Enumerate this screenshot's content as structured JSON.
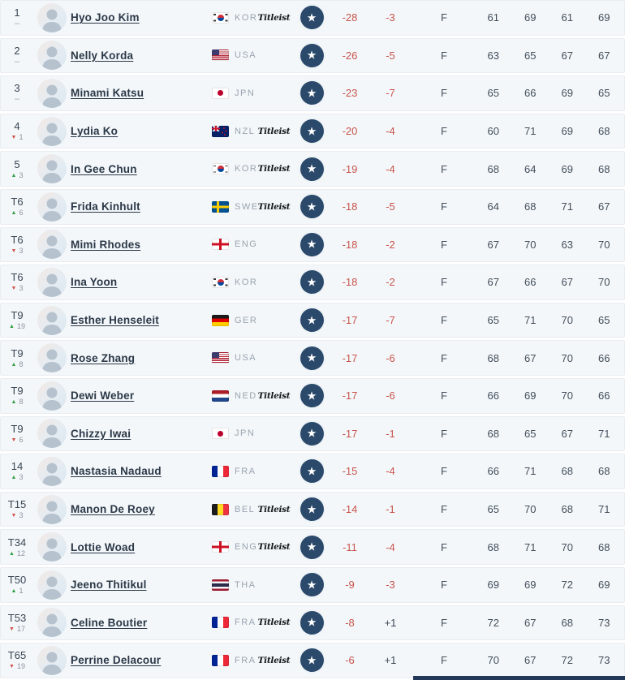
{
  "colors": {
    "row_background": "#f3f7fa",
    "star_badge_navy": "#2b4a6b",
    "score_red": "#c9544b",
    "movement_up_green": "#2f9e44",
    "movement_down_red": "#d0544c"
  },
  "icons": {
    "star": "star-icon",
    "movement_up": "triangle-up-icon",
    "movement_down": "triangle-down-icon",
    "no_movement": "dash"
  },
  "rows": [
    {
      "position": "1",
      "movement": {
        "dir": "none",
        "value": ""
      },
      "player": "Hyo Joo Kim",
      "country": "KOR",
      "titleist": true,
      "total": "-28",
      "today": "-3",
      "thru": "F",
      "r1": "61",
      "r2": "69",
      "r3": "61",
      "r4": "69"
    },
    {
      "position": "2",
      "movement": {
        "dir": "none",
        "value": ""
      },
      "player": "Nelly Korda",
      "country": "USA",
      "titleist": false,
      "total": "-26",
      "today": "-5",
      "thru": "F",
      "r1": "63",
      "r2": "65",
      "r3": "67",
      "r4": "67"
    },
    {
      "position": "3",
      "movement": {
        "dir": "none",
        "value": ""
      },
      "player": "Minami Katsu",
      "country": "JPN",
      "titleist": false,
      "total": "-23",
      "today": "-7",
      "thru": "F",
      "r1": "65",
      "r2": "66",
      "r3": "69",
      "r4": "65"
    },
    {
      "position": "4",
      "movement": {
        "dir": "down",
        "value": "1"
      },
      "player": "Lydia Ko",
      "country": "NZL",
      "titleist": true,
      "total": "-20",
      "today": "-4",
      "thru": "F",
      "r1": "60",
      "r2": "71",
      "r3": "69",
      "r4": "68"
    },
    {
      "position": "5",
      "movement": {
        "dir": "up",
        "value": "3"
      },
      "player": "In Gee Chun",
      "country": "KOR",
      "titleist": true,
      "total": "-19",
      "today": "-4",
      "thru": "F",
      "r1": "68",
      "r2": "64",
      "r3": "69",
      "r4": "68"
    },
    {
      "position": "T6",
      "movement": {
        "dir": "up",
        "value": "6"
      },
      "player": "Frida Kinhult",
      "country": "SWE",
      "titleist": true,
      "total": "-18",
      "today": "-5",
      "thru": "F",
      "r1": "64",
      "r2": "68",
      "r3": "71",
      "r4": "67"
    },
    {
      "position": "T6",
      "movement": {
        "dir": "down",
        "value": "3"
      },
      "player": "Mimi Rhodes",
      "country": "ENG",
      "titleist": false,
      "total": "-18",
      "today": "-2",
      "thru": "F",
      "r1": "67",
      "r2": "70",
      "r3": "63",
      "r4": "70"
    },
    {
      "position": "T6",
      "movement": {
        "dir": "down",
        "value": "3"
      },
      "player": "Ina Yoon",
      "country": "KOR",
      "titleist": false,
      "total": "-18",
      "today": "-2",
      "thru": "F",
      "r1": "67",
      "r2": "66",
      "r3": "67",
      "r4": "70"
    },
    {
      "position": "T9",
      "movement": {
        "dir": "up",
        "value": "19"
      },
      "player": "Esther Henseleit",
      "country": "GER",
      "titleist": false,
      "total": "-17",
      "today": "-7",
      "thru": "F",
      "r1": "65",
      "r2": "71",
      "r3": "70",
      "r4": "65"
    },
    {
      "position": "T9",
      "movement": {
        "dir": "up",
        "value": "8"
      },
      "player": "Rose Zhang",
      "country": "USA",
      "titleist": false,
      "total": "-17",
      "today": "-6",
      "thru": "F",
      "r1": "68",
      "r2": "67",
      "r3": "70",
      "r4": "66"
    },
    {
      "position": "T9",
      "movement": {
        "dir": "up",
        "value": "8"
      },
      "player": "Dewi Weber",
      "country": "NED",
      "titleist": true,
      "total": "-17",
      "today": "-6",
      "thru": "F",
      "r1": "66",
      "r2": "69",
      "r3": "70",
      "r4": "66"
    },
    {
      "position": "T9",
      "movement": {
        "dir": "down",
        "value": "6"
      },
      "player": "Chizzy Iwai",
      "country": "JPN",
      "titleist": false,
      "total": "-17",
      "today": "-1",
      "thru": "F",
      "r1": "68",
      "r2": "65",
      "r3": "67",
      "r4": "71"
    },
    {
      "position": "14",
      "movement": {
        "dir": "up",
        "value": "3"
      },
      "player": "Nastasia Nadaud",
      "country": "FRA",
      "titleist": false,
      "total": "-15",
      "today": "-4",
      "thru": "F",
      "r1": "66",
      "r2": "71",
      "r3": "68",
      "r4": "68"
    },
    {
      "position": "T15",
      "movement": {
        "dir": "down",
        "value": "3"
      },
      "player": "Manon De Roey",
      "country": "BEL",
      "titleist": true,
      "total": "-14",
      "today": "-1",
      "thru": "F",
      "r1": "65",
      "r2": "70",
      "r3": "68",
      "r4": "71"
    },
    {
      "position": "T34",
      "movement": {
        "dir": "up",
        "value": "12"
      },
      "player": "Lottie Woad",
      "country": "ENG",
      "titleist": true,
      "total": "-11",
      "today": "-4",
      "thru": "F",
      "r1": "68",
      "r2": "71",
      "r3": "70",
      "r4": "68"
    },
    {
      "position": "T50",
      "movement": {
        "dir": "up",
        "value": "1"
      },
      "player": "Jeeno Thitikul",
      "country": "THA",
      "titleist": false,
      "total": "-9",
      "today": "-3",
      "thru": "F",
      "r1": "69",
      "r2": "69",
      "r3": "72",
      "r4": "69"
    },
    {
      "position": "T53",
      "movement": {
        "dir": "down",
        "value": "17"
      },
      "player": "Celine Boutier",
      "country": "FRA",
      "titleist": true,
      "total": "-8",
      "today": "+1",
      "thru": "F",
      "r1": "72",
      "r2": "67",
      "r3": "68",
      "r4": "73"
    },
    {
      "position": "T65",
      "movement": {
        "dir": "down",
        "value": "19"
      },
      "player": "Perrine Delacour",
      "country": "FRA",
      "titleist": true,
      "total": "-6",
      "today": "+1",
      "thru": "F",
      "r1": "70",
      "r2": "67",
      "r3": "72",
      "r4": "73"
    }
  ],
  "titleist_label": "Titleist",
  "star_glyph": "★"
}
